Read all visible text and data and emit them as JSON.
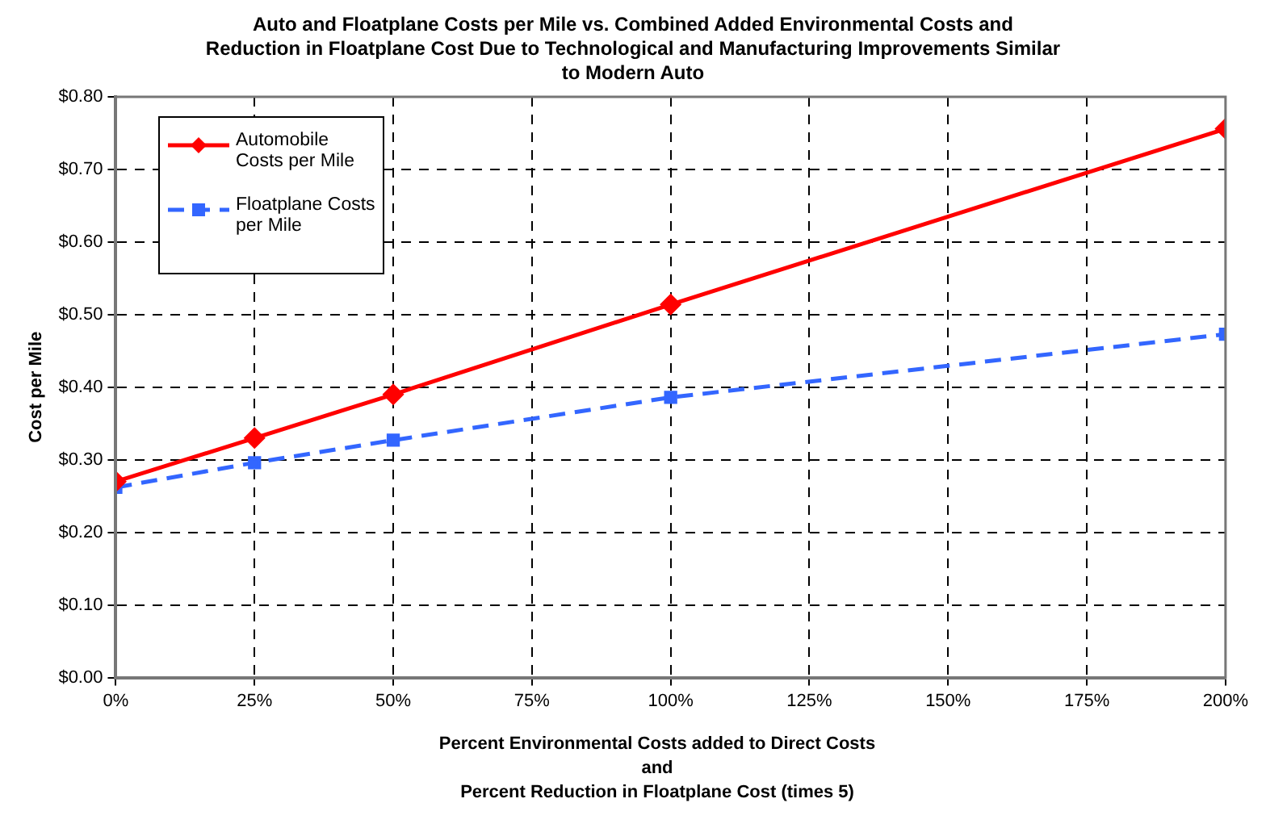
{
  "chart_data": {
    "type": "line",
    "title": "Auto and Floatplane Costs per Mile vs. Combined Added Environmental Costs and\nReduction in Floatplane Cost Due to Technological and Manufacturing Improvements Similar\nto Modern Auto",
    "xlabel": "Percent Environmental Costs added to Direct Costs\nand\nPercent Reduction in Floatplane Cost (times 5)",
    "ylabel": "Cost per Mile",
    "x": [
      0,
      25,
      50,
      100,
      200
    ],
    "series": [
      {
        "name": "Automobile Costs per Mile",
        "color": "#ff0000",
        "values": [
          0.27,
          0.33,
          0.39,
          0.514,
          0.756
        ],
        "marker": "diamond",
        "line_style": "solid"
      },
      {
        "name": "Floatplane Costs per Mile",
        "color": "#3366ff",
        "values": [
          0.262,
          0.296,
          0.327,
          0.386,
          0.473
        ],
        "marker": "square",
        "line_style": "dashed"
      }
    ],
    "xlim": [
      0,
      200
    ],
    "xticks": [
      {
        "value": 0,
        "label": "0%"
      },
      {
        "value": 25,
        "label": "25%"
      },
      {
        "value": 50,
        "label": "50%"
      },
      {
        "value": 75,
        "label": "75%"
      },
      {
        "value": 100,
        "label": "100%"
      },
      {
        "value": 125,
        "label": "125%"
      },
      {
        "value": 150,
        "label": "150%"
      },
      {
        "value": 175,
        "label": "175%"
      },
      {
        "value": 200,
        "label": "200%"
      }
    ],
    "ylim": [
      0,
      0.8
    ],
    "yticks": [
      {
        "value": 0,
        "label": "$0.00"
      },
      {
        "value": 0.1,
        "label": "$0.10"
      },
      {
        "value": 0.2,
        "label": "$0.20"
      },
      {
        "value": 0.3,
        "label": "$0.30"
      },
      {
        "value": 0.4,
        "label": "$0.40"
      },
      {
        "value": 0.5,
        "label": "$0.50"
      },
      {
        "value": 0.6,
        "label": "$0.60"
      },
      {
        "value": 0.7,
        "label": "$0.70"
      },
      {
        "value": 0.8,
        "label": "$0.80"
      }
    ],
    "grid": true,
    "legend": "top left"
  }
}
